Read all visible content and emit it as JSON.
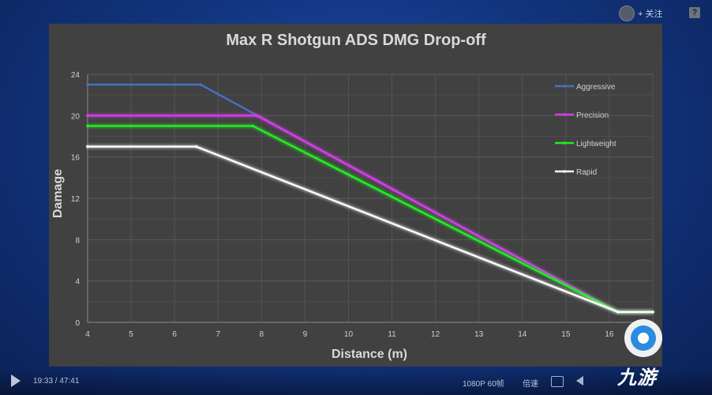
{
  "player": {
    "follow_label": "+ 关注",
    "help_label": "?",
    "current_time": "19:33",
    "total_time": "47:41",
    "time_separator": " / ",
    "quality": "1080P 60帧",
    "speed": "倍速"
  },
  "watermark": {
    "text": "九游"
  },
  "chart_data": {
    "type": "line",
    "title": "Max R Shotgun ADS DMG Drop-off",
    "xlabel": "Distance (m)",
    "ylabel": "Damage",
    "xlim": [
      4,
      17
    ],
    "ylim": [
      0,
      24
    ],
    "xticks": [
      4,
      5,
      6,
      7,
      8,
      9,
      10,
      11,
      12,
      13,
      14,
      15,
      16
    ],
    "yticks": [
      0,
      4,
      8,
      12,
      16,
      20,
      24
    ],
    "legend_position": "top-right",
    "series": [
      {
        "name": "Aggressive",
        "color": "#4472c4",
        "x": [
          4,
          6.6,
          16.2,
          17
        ],
        "y": [
          23,
          23,
          1,
          1
        ]
      },
      {
        "name": "Precision",
        "color": "#d63ee8",
        "x": [
          4,
          7.9,
          16.2,
          17
        ],
        "y": [
          20,
          20,
          1,
          1
        ]
      },
      {
        "name": "Lightweight",
        "color": "#22ee22",
        "x": [
          4,
          7.8,
          16.2,
          17
        ],
        "y": [
          19,
          19,
          1,
          1
        ]
      },
      {
        "name": "Rapid",
        "color": "#ffffff",
        "x": [
          4,
          6.5,
          16.2,
          17
        ],
        "y": [
          17,
          17,
          1,
          1
        ]
      }
    ]
  }
}
